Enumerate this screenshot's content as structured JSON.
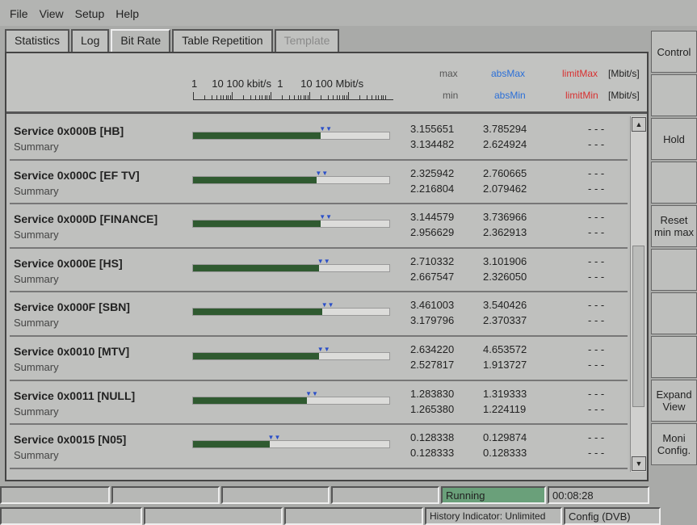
{
  "menu": [
    "File",
    "View",
    "Setup",
    "Help"
  ],
  "tabs": [
    {
      "label": "Statistics"
    },
    {
      "label": "Log"
    },
    {
      "label": "Bit Rate",
      "active": true
    },
    {
      "label": "Table Repetition"
    },
    {
      "label": "Template",
      "disabled": true
    }
  ],
  "header": {
    "scale_label": "1     10 100 kbit/s  1      10 100 Mbit/s",
    "max": "max",
    "min": "min",
    "absMax": "absMax",
    "absMin": "absMin",
    "limitMax": "limitMax",
    "limitMin": "limitMin",
    "unit": "[Mbit/s]"
  },
  "colors": {
    "bar": "#2f5a30",
    "abs": "#2a6fd8",
    "limit": "#d83030",
    "running": "#6aa07a"
  },
  "services": [
    {
      "name": "Service  0x000B [HB]",
      "sub": "Summary",
      "level": 0.65,
      "max": "3.155651",
      "min": "3.134482",
      "absMax": "3.785294",
      "absMin": "2.624924",
      "limitMax": "- - -",
      "limitMin": "- - -"
    },
    {
      "name": "Service  0x000C [EF TV]",
      "sub": "Summary",
      "level": 0.63,
      "max": "2.325942",
      "min": "2.216804",
      "absMax": "2.760665",
      "absMin": "2.079462",
      "limitMax": "- - -",
      "limitMin": "- - -"
    },
    {
      "name": "Service  0x000D [FINANCE]",
      "sub": "Summary",
      "level": 0.65,
      "max": "3.144579",
      "min": "2.956629",
      "absMax": "3.736966",
      "absMin": "2.362913",
      "limitMax": "- - -",
      "limitMin": "- - -"
    },
    {
      "name": "Service  0x000E [HS]",
      "sub": "Summary",
      "level": 0.64,
      "max": "2.710332",
      "min": "2.667547",
      "absMax": "3.101906",
      "absMin": "2.326050",
      "limitMax": "- - -",
      "limitMin": "- - -"
    },
    {
      "name": "Service  0x000F [SBN]",
      "sub": "Summary",
      "level": 0.66,
      "max": "3.461003",
      "min": "3.179796",
      "absMax": "3.540426",
      "absMin": "2.370337",
      "limitMax": "- - -",
      "limitMin": "- - -"
    },
    {
      "name": "Service  0x0010 [MTV]",
      "sub": "Summary",
      "level": 0.64,
      "max": "2.634220",
      "min": "2.527817",
      "absMax": "4.653572",
      "absMin": "1.913727",
      "limitMax": "- - -",
      "limitMin": "- - -"
    },
    {
      "name": "Service  0x0011 [NULL]",
      "sub": "Summary",
      "level": 0.58,
      "max": "1.283830",
      "min": "1.265380",
      "absMax": "1.319333",
      "absMin": "1.224119",
      "limitMax": "- - -",
      "limitMin": "- - -"
    },
    {
      "name": "Service  0x0015 [N05]",
      "sub": "Summary",
      "level": 0.39,
      "max": "0.128338",
      "min": "0.128333",
      "absMax": "0.129874",
      "absMin": "0.128333",
      "limitMax": "- - -",
      "limitMin": "- - -"
    }
  ],
  "side": [
    "Control",
    "",
    "Hold",
    "",
    "Reset min max",
    "",
    "",
    "",
    "Expand View",
    "Moni Config."
  ],
  "status": {
    "state": "Running",
    "time": "00:08:28",
    "history": "History Indicator: Unlimited",
    "config": "Config (DVB)"
  }
}
